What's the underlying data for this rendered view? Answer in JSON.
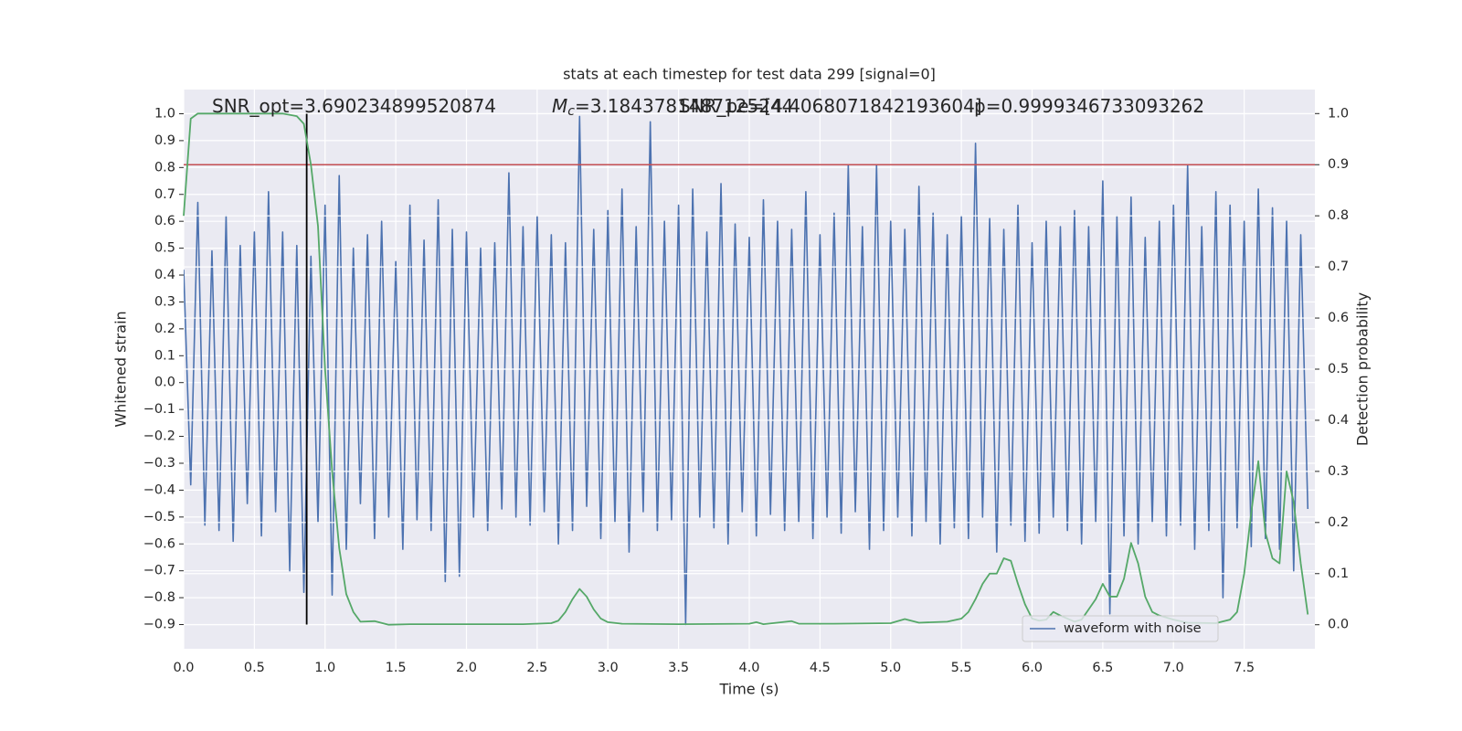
{
  "chart_data": {
    "type": "line",
    "title": "stats at each timestep for test data 299 [signal=0]",
    "xlabel": "Time (s)",
    "ylabel": "Whitened strain",
    "y2label": "Detection probability",
    "xlim": [
      0,
      8
    ],
    "ylim": [
      -0.99,
      1.09
    ],
    "y2lim": [
      -0.047,
      1.047
    ],
    "xticks": [
      {
        "value": 0,
        "label": "0.0"
      },
      0.5,
      {
        "value": 1,
        "label": "1.0"
      },
      1.5,
      {
        "value": 2,
        "label": "2.0"
      },
      2.5,
      {
        "value": 3,
        "label": "3.0"
      },
      3.5,
      {
        "value": 4,
        "label": "4.0"
      },
      4.5,
      {
        "value": 5,
        "label": "5.0"
      },
      5.5,
      {
        "value": 6,
        "label": "6.0"
      },
      6.5,
      {
        "value": 7,
        "label": "7.0"
      },
      7.5
    ],
    "yticks": [
      {
        "value": -0.9,
        "label": "−0.9"
      },
      {
        "value": -0.8,
        "label": "−0.8"
      },
      {
        "value": -0.7,
        "label": "−0.7"
      },
      {
        "value": -0.6,
        "label": "−0.6"
      },
      {
        "value": -0.5,
        "label": "−0.5"
      },
      {
        "value": -0.4,
        "label": "−0.4"
      },
      {
        "value": -0.3,
        "label": "−0.3"
      },
      {
        "value": -0.2,
        "label": "−0.2"
      },
      {
        "value": -0.1,
        "label": "−0.1"
      },
      {
        "value": 0,
        "label": "0.0"
      },
      0.1,
      0.2,
      0.3,
      0.4,
      0.5,
      0.6,
      0.7,
      0.8,
      0.9,
      {
        "value": 1,
        "label": "1.0"
      }
    ],
    "y2ticks": [
      {
        "value": 0,
        "label": "0.0"
      },
      0.1,
      0.2,
      0.3,
      0.4,
      0.5,
      0.6,
      0.7,
      0.8,
      0.9,
      {
        "value": 1,
        "label": "1.0"
      }
    ],
    "grid": true,
    "legend": "lower right",
    "series": [
      {
        "name": "waveform with noise",
        "color": "#4c72b0",
        "x": [
          0,
          0.05,
          0.1,
          0.15,
          0.2,
          0.25,
          0.3,
          0.35,
          0.4,
          0.45,
          0.5,
          0.55,
          0.6,
          0.65,
          0.7,
          0.75,
          0.8,
          0.85,
          0.9,
          0.95,
          1,
          1.05,
          1.1,
          1.15,
          1.2,
          1.25,
          1.3,
          1.35,
          1.4,
          1.45,
          1.5,
          1.55,
          1.6,
          1.65,
          1.7,
          1.75,
          1.8,
          1.85,
          1.9,
          1.95,
          2,
          2.05,
          2.1,
          2.15,
          2.2,
          2.25,
          2.3,
          2.35,
          2.4,
          2.45,
          2.5,
          2.55,
          2.6,
          2.65,
          2.7,
          2.75,
          2.8,
          2.85,
          2.9,
          2.95,
          3,
          3.05,
          3.1,
          3.15,
          3.2,
          3.25,
          3.3,
          3.35,
          3.4,
          3.45,
          3.5,
          3.55,
          3.6,
          3.65,
          3.7,
          3.75,
          3.8,
          3.85,
          3.9,
          3.95,
          4,
          4.05,
          4.1,
          4.15,
          4.2,
          4.25,
          4.3,
          4.35,
          4.4,
          4.45,
          4.5,
          4.55,
          4.6,
          4.65,
          4.7,
          4.75,
          4.8,
          4.85,
          4.9,
          4.95,
          5,
          5.05,
          5.1,
          5.15,
          5.2,
          5.25,
          5.3,
          5.35,
          5.4,
          5.45,
          5.5,
          5.55,
          5.6,
          5.65,
          5.7,
          5.75,
          5.8,
          5.85,
          5.9,
          5.95,
          6,
          6.05,
          6.1,
          6.15,
          6.2,
          6.25,
          6.3,
          6.35,
          6.4,
          6.45,
          6.5,
          6.55,
          6.6,
          6.65,
          6.7,
          6.75,
          6.8,
          6.85,
          6.9,
          6.95,
          7,
          7.05,
          7.1,
          7.15,
          7.2,
          7.25,
          7.3,
          7.35,
          7.4,
          7.45,
          7.5,
          7.55,
          7.6,
          7.65,
          7.7,
          7.75,
          7.8,
          7.85,
          7.9,
          7.95
        ],
        "values": [
          0.42,
          -0.38,
          0.67,
          -0.53,
          0.49,
          -0.55,
          0.62,
          -0.59,
          0.51,
          -0.45,
          0.56,
          -0.57,
          0.71,
          -0.48,
          0.56,
          -0.7,
          0.51,
          -0.78,
          0.47,
          -0.52,
          0.66,
          -0.79,
          0.77,
          -0.62,
          0.5,
          -0.45,
          0.55,
          -0.58,
          0.6,
          -0.5,
          0.45,
          -0.62,
          0.66,
          -0.51,
          0.53,
          -0.55,
          0.68,
          -0.74,
          0.57,
          -0.72,
          0.56,
          -0.5,
          0.5,
          -0.55,
          0.52,
          -0.47,
          0.78,
          -0.5,
          0.58,
          -0.53,
          0.62,
          -0.48,
          0.55,
          -0.6,
          0.52,
          -0.55,
          0.99,
          -0.46,
          0.57,
          -0.58,
          0.64,
          -0.52,
          0.72,
          -0.63,
          0.58,
          -0.48,
          0.97,
          -0.55,
          0.6,
          -0.51,
          0.66,
          -0.9,
          0.72,
          -0.5,
          0.56,
          -0.54,
          0.74,
          -0.6,
          0.59,
          -0.48,
          0.54,
          -0.57,
          0.68,
          -0.49,
          0.6,
          -0.55,
          0.57,
          -0.52,
          0.71,
          -0.58,
          0.55,
          -0.5,
          0.63,
          -0.56,
          0.81,
          -0.48,
          0.58,
          -0.62,
          0.81,
          -0.55,
          0.6,
          -0.5,
          0.57,
          -0.57,
          0.73,
          -0.52,
          0.63,
          -0.6,
          0.55,
          -0.54,
          0.62,
          -0.58,
          0.89,
          -0.5,
          0.61,
          -0.63,
          0.57,
          -0.53,
          0.66,
          -0.59,
          0.52,
          -0.56,
          0.6,
          -0.5,
          0.58,
          -0.55,
          0.64,
          -0.6,
          0.58,
          -0.52,
          0.75,
          -0.86,
          0.62,
          -0.57,
          0.69,
          -0.6,
          0.54,
          -0.52,
          0.6,
          -0.57,
          0.66,
          -0.53,
          0.81,
          -0.62,
          0.58,
          -0.55,
          0.71,
          -0.8,
          0.66,
          -0.54,
          0.6,
          -0.61,
          0.72,
          -0.58,
          0.65,
          -0.62,
          0.6,
          -0.7,
          0.55,
          -0.47
        ]
      },
      {
        "color": "#55a868",
        "axis": "y2",
        "x": [
          0,
          0.05,
          0.1,
          0.15,
          0.3,
          0.5,
          0.7,
          0.8,
          0.85,
          0.9,
          0.95,
          1,
          1.05,
          1.1,
          1.15,
          1.2,
          1.25,
          1.35,
          1.45,
          1.6,
          2,
          2.4,
          2.6,
          2.65,
          2.7,
          2.75,
          2.8,
          2.85,
          2.9,
          2.95,
          3,
          3.1,
          3.5,
          4,
          4.05,
          4.1,
          4.3,
          4.35,
          4.6,
          5,
          5.1,
          5.2,
          5.4,
          5.5,
          5.55,
          5.6,
          5.65,
          5.7,
          5.75,
          5.8,
          5.85,
          5.9,
          5.95,
          6,
          6.05,
          6.1,
          6.15,
          6.2,
          6.3,
          6.35,
          6.45,
          6.5,
          6.55,
          6.6,
          6.65,
          6.7,
          6.75,
          6.8,
          6.85,
          6.9,
          7,
          7.1,
          7.3,
          7.4,
          7.45,
          7.5,
          7.55,
          7.6,
          7.65,
          7.7,
          7.75,
          7.8,
          7.85,
          7.9,
          7.95
        ],
        "values": [
          0.8,
          0.99,
          1,
          1,
          1,
          1,
          1,
          0.995,
          0.98,
          0.9,
          0.78,
          0.5,
          0.3,
          0.15,
          0.06,
          0.025,
          0.006,
          0.007,
          0,
          0.001,
          0.001,
          0.001,
          0.003,
          0.008,
          0.025,
          0.05,
          0.07,
          0.055,
          0.03,
          0.012,
          0.005,
          0.002,
          0.001,
          0.002,
          0.005,
          0.001,
          0.007,
          0.002,
          0.002,
          0.003,
          0.011,
          0.004,
          0.006,
          0.012,
          0.025,
          0.05,
          0.08,
          0.1,
          0.1,
          0.13,
          0.125,
          0.08,
          0.04,
          0.012,
          0.008,
          0.01,
          0.025,
          0.018,
          0.006,
          0.01,
          0.05,
          0.08,
          0.055,
          0.055,
          0.09,
          0.16,
          0.12,
          0.055,
          0.025,
          0.018,
          0.01,
          0.004,
          0.003,
          0.01,
          0.025,
          0.1,
          0.22,
          0.32,
          0.18,
          0.13,
          0.12,
          0.3,
          0.24,
          0.12,
          0.02
        ]
      }
    ],
    "hlines": [
      {
        "y": 0.9,
        "axis": "y2",
        "color": "#c44e52"
      }
    ],
    "vlines": [
      {
        "x": 0.87,
        "ymin": -0.9,
        "ymax": 1,
        "color": "#000000"
      }
    ],
    "annotations": [
      {
        "text": "SNR_opt=3.690234899520874"
      },
      {
        "symbol": "M",
        "subscript": "c",
        "text": "=3.1843781487125244"
      },
      {
        "text": "SNR_pe=[4.4068071842193604]"
      },
      {
        "text": "p=0.9999346733093262"
      }
    ]
  }
}
